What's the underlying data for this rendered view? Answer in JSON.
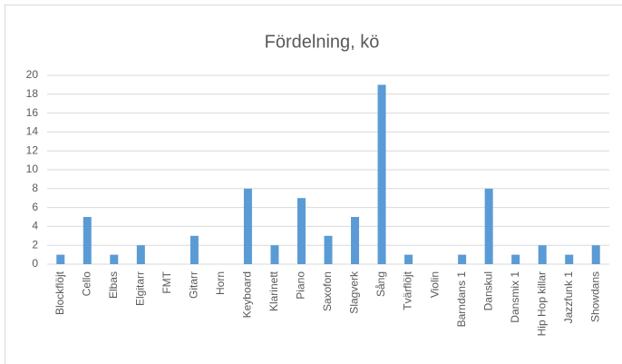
{
  "chart_data": {
    "type": "bar",
    "title": "Fördelning, kö",
    "categories": [
      "Blockflöjt",
      "Cello",
      "Elbas",
      "Elgitarr",
      "FMT",
      "Gitarr",
      "Horn",
      "Keyboard",
      "Klarinett",
      "Piano",
      "Saxofon",
      "Slagverk",
      "Sång",
      "Tvärflöjt",
      "Violin",
      "Barndans 1",
      "Danskul",
      "Dansmix 1",
      "Hip Hop killar",
      "Jazzfunk 1",
      "Showdans"
    ],
    "values": [
      1,
      5,
      1,
      2,
      0,
      3,
      0,
      8,
      2,
      7,
      3,
      5,
      19,
      1,
      0,
      1,
      8,
      1,
      2,
      1,
      2
    ],
    "color": "#5b9bd5",
    "ylim": [
      0,
      20
    ],
    "yticks": [
      0,
      2,
      4,
      6,
      8,
      10,
      12,
      14,
      16,
      18,
      20
    ],
    "grid": true
  }
}
